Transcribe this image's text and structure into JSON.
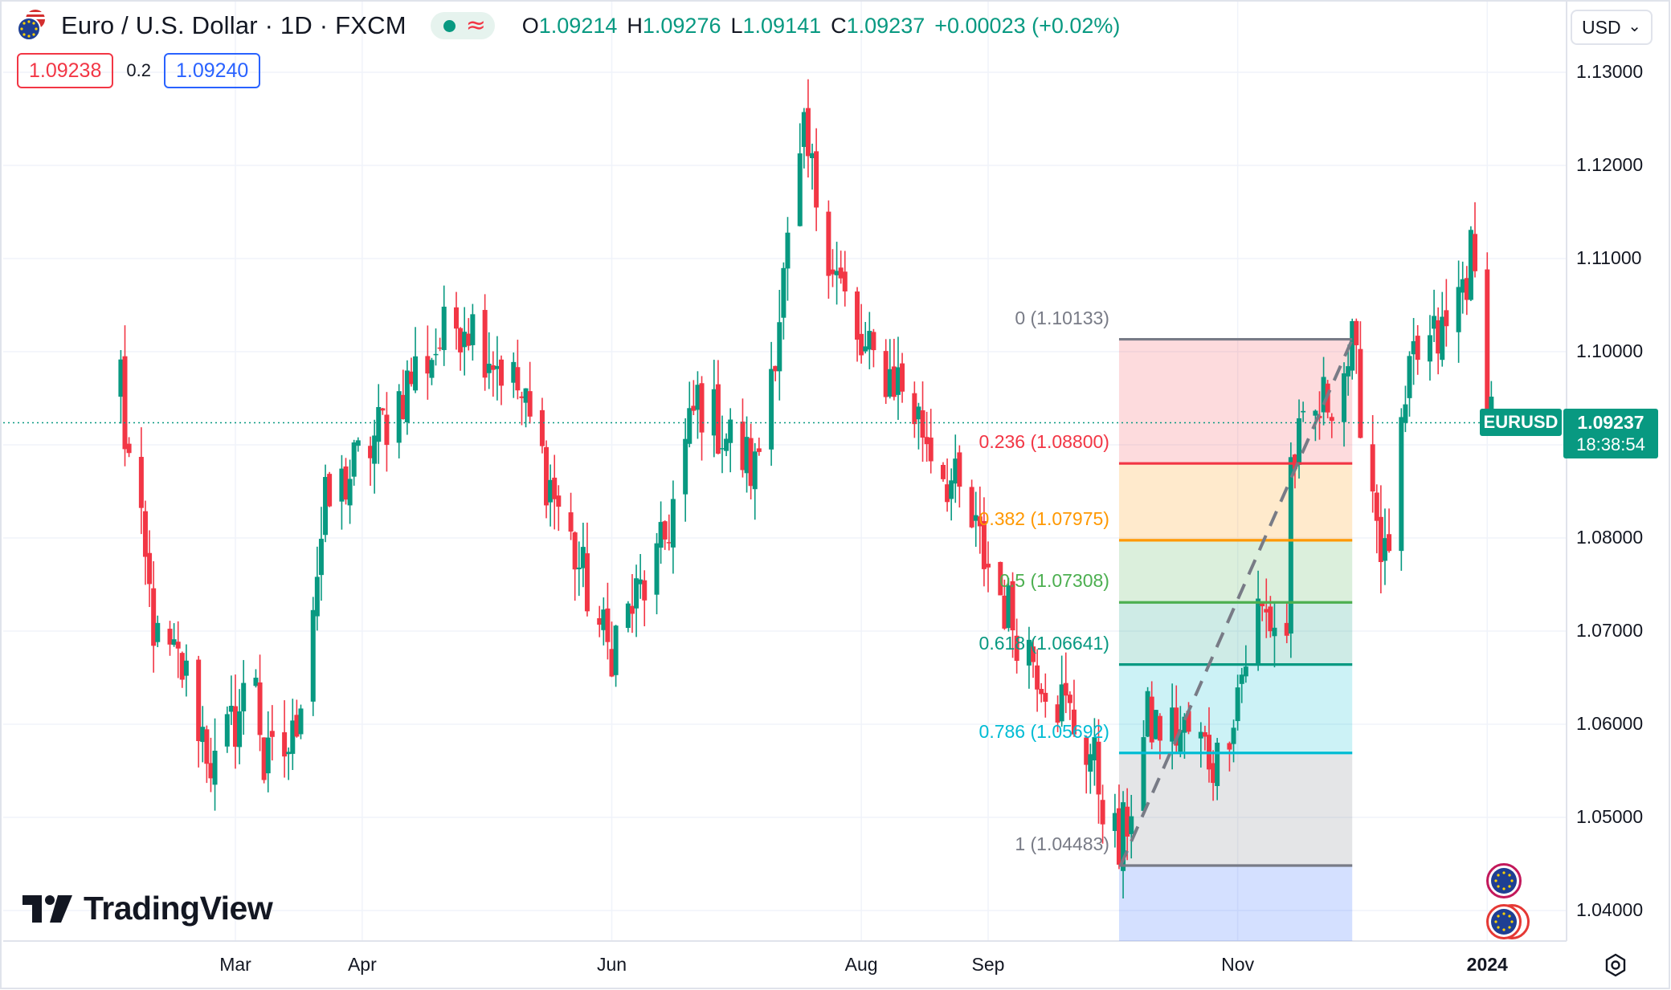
{
  "header": {
    "symbol_title": "Euro / U.S. Dollar · 1D · FXCM",
    "ohlc": {
      "o_label": "O",
      "o_value": "1.09214",
      "h_label": "H",
      "h_value": "1.09276",
      "l_label": "L",
      "l_value": "1.09141",
      "c_label": "C",
      "c_value": "1.09237",
      "change": "+0.00023 (+0.02%)"
    },
    "bid": "1.09238",
    "spread": "0.2",
    "ask": "1.09240",
    "currency": "USD"
  },
  "price_axis": {
    "labels": [
      "1.13000",
      "1.12000",
      "1.11000",
      "1.10000",
      "1.09000",
      "1.08000",
      "1.07000",
      "1.06000",
      "1.05000",
      "1.04000"
    ]
  },
  "time_axis": {
    "labels": [
      "Mar",
      "Apr",
      "Jun",
      "Aug",
      "Sep",
      "Nov",
      "2024"
    ]
  },
  "last_price_tag": {
    "symbol": "EURUSD",
    "price": "1.09237",
    "countdown": "18:38:54"
  },
  "fib_levels": [
    {
      "label": "0 (1.10133)",
      "level": 0,
      "price": 1.10133,
      "color": "#787b86"
    },
    {
      "label": "0.236 (1.08800)",
      "level": 0.236,
      "price": 1.088,
      "color": "#f23645"
    },
    {
      "label": "0.382 (1.07975)",
      "level": 0.382,
      "price": 1.07975,
      "color": "#ff9800"
    },
    {
      "label": "0.5 (1.07308)",
      "level": 0.5,
      "price": 1.07308,
      "color": "#4caf50"
    },
    {
      "label": "0.618 (1.06641)",
      "level": 0.618,
      "price": 1.06641,
      "color": "#089981"
    },
    {
      "label": "0.786 (1.05692)",
      "level": 0.786,
      "price": 1.05692,
      "color": "#00bcd4"
    },
    {
      "label": "1 (1.04483)",
      "level": 1,
      "price": 1.04483,
      "color": "#787b86"
    }
  ],
  "colors": {
    "up": "#089981",
    "down": "#f23645",
    "grid": "#f0f3fa",
    "text": "#131722",
    "bid": "#f23645",
    "ask": "#2962ff"
  },
  "watermark": "TradingView",
  "chart_data": {
    "type": "candlestick",
    "symbol": "EURUSD",
    "interval": "1D",
    "ylim": [
      1.038,
      1.135
    ],
    "last_close": 1.09237,
    "anchors": [
      {
        "date": "2023-02-01",
        "price": 1.098
      },
      {
        "date": "2023-02-02",
        "price": 1.091
      },
      {
        "date": "2023-02-10",
        "price": 1.068
      },
      {
        "date": "2023-02-16",
        "price": 1.066
      },
      {
        "date": "2023-02-24",
        "price": 1.055
      },
      {
        "date": "2023-03-06",
        "price": 1.066
      },
      {
        "date": "2023-03-08",
        "price": 1.055
      },
      {
        "date": "2023-03-15",
        "price": 1.058
      },
      {
        "date": "2023-03-23",
        "price": 1.083
      },
      {
        "date": "2023-04-03",
        "price": 1.09
      },
      {
        "date": "2023-04-14",
        "price": 1.098
      },
      {
        "date": "2023-04-26",
        "price": 1.104
      },
      {
        "date": "2023-05-09",
        "price": 1.096
      },
      {
        "date": "2023-05-31",
        "price": 1.068
      },
      {
        "date": "2023-06-13",
        "price": 1.078
      },
      {
        "date": "2023-06-22",
        "price": 1.095
      },
      {
        "date": "2023-07-06",
        "price": 1.087
      },
      {
        "date": "2023-07-18",
        "price": 1.122
      },
      {
        "date": "2023-07-31",
        "price": 1.1
      },
      {
        "date": "2023-08-10",
        "price": 1.097
      },
      {
        "date": "2023-08-24",
        "price": 1.085
      },
      {
        "date": "2023-09-06",
        "price": 1.072
      },
      {
        "date": "2023-09-26",
        "price": 1.057
      },
      {
        "date": "2023-10-03",
        "price": 1.046
      },
      {
        "date": "2023-10-10",
        "price": 1.06
      },
      {
        "date": "2023-10-20",
        "price": 1.059
      },
      {
        "date": "2023-10-27",
        "price": 1.056
      },
      {
        "date": "2023-11-06",
        "price": 1.072
      },
      {
        "date": "2023-11-13",
        "price": 1.07
      },
      {
        "date": "2023-11-14",
        "price": 1.088
      },
      {
        "date": "2023-11-29",
        "price": 1.1
      },
      {
        "date": "2023-12-07",
        "price": 1.077
      },
      {
        "date": "2023-12-14",
        "price": 1.099
      },
      {
        "date": "2023-12-22",
        "price": 1.102
      },
      {
        "date": "2023-12-28",
        "price": 1.11
      },
      {
        "date": "2024-01-02",
        "price": 1.094
      },
      {
        "date": "2024-01-03",
        "price": 1.0924
      }
    ],
    "fib_retracement": {
      "from": {
        "date": "2023-10-03",
        "price": 1.04483
      },
      "to": {
        "date": "2023-11-29",
        "price": 1.10133
      }
    }
  }
}
